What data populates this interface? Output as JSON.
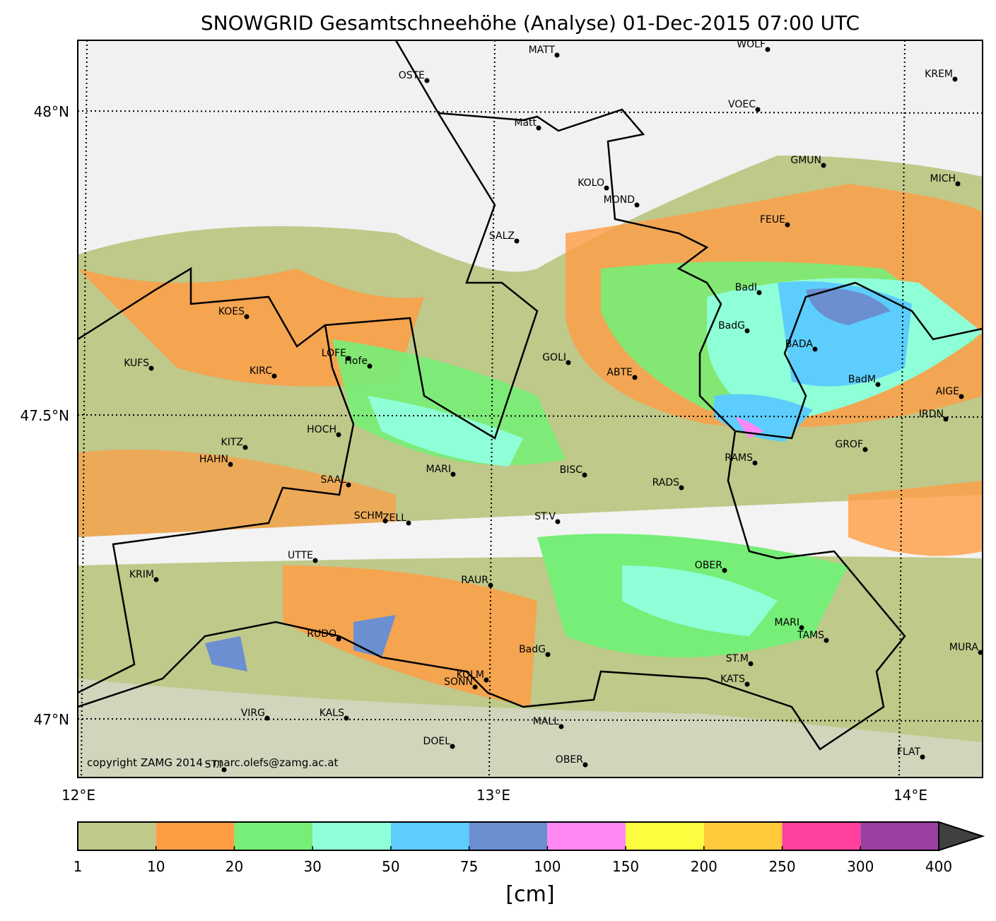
{
  "title": "SNOWGRID Gesamtschneehöhe (Analyse) 01-Dec-2015 07:00 UTC",
  "map": {
    "lat_labels": [
      "48°N",
      "47.5°N",
      "47°N"
    ],
    "lon_labels": [
      "12°E",
      "13°E",
      "14°E"
    ],
    "copyright": "copyright ZAMG 2014 - marc.olefs@zamg.ac.at",
    "stations": [
      "MATT",
      "WOLF",
      "OSTE",
      "KREM",
      "VOEC",
      "Matt",
      "GMUN",
      "MICH",
      "KOLO",
      "MOND",
      "FEUE",
      "SALZ",
      "BadI",
      "KOES",
      "BadG",
      "BADA",
      "LOFE",
      "Hofe",
      "GOLI",
      "KUFS",
      "KIRC",
      "ABTE",
      "BadM",
      "AIGE",
      "IRDN",
      "HOCH",
      "KITZ",
      "GROF",
      "HAHN",
      "RAMS",
      "MARI",
      "BISC",
      "SAAL",
      "RADS",
      "SCHM",
      "ZELL",
      "ST.V",
      "UTTE",
      "OBER",
      "KRIM",
      "RAUR",
      "MARI",
      "TAMS",
      "RUDO",
      "MURA",
      "BadG",
      "ST.M",
      "KOLM",
      "SONN",
      "KATS",
      "VIRG",
      "KALS",
      "MALL",
      "DOEL",
      "FLAT",
      "OBER",
      "ST.I"
    ]
  },
  "colorbar": {
    "levels": [
      1,
      10,
      20,
      30,
      50,
      75,
      100,
      150,
      200,
      250,
      300,
      400
    ],
    "colors": [
      "#bec98a",
      "#ff9d45",
      "#77ee77",
      "#8fffd8",
      "#5ccdfc",
      "#6b8fd0",
      "#ff88f5",
      "#fdfd3f",
      "#ffc93c",
      "#ff3f9c",
      "#9b3fa3"
    ],
    "extend_color": "#404040",
    "unit": "[cm]"
  }
}
